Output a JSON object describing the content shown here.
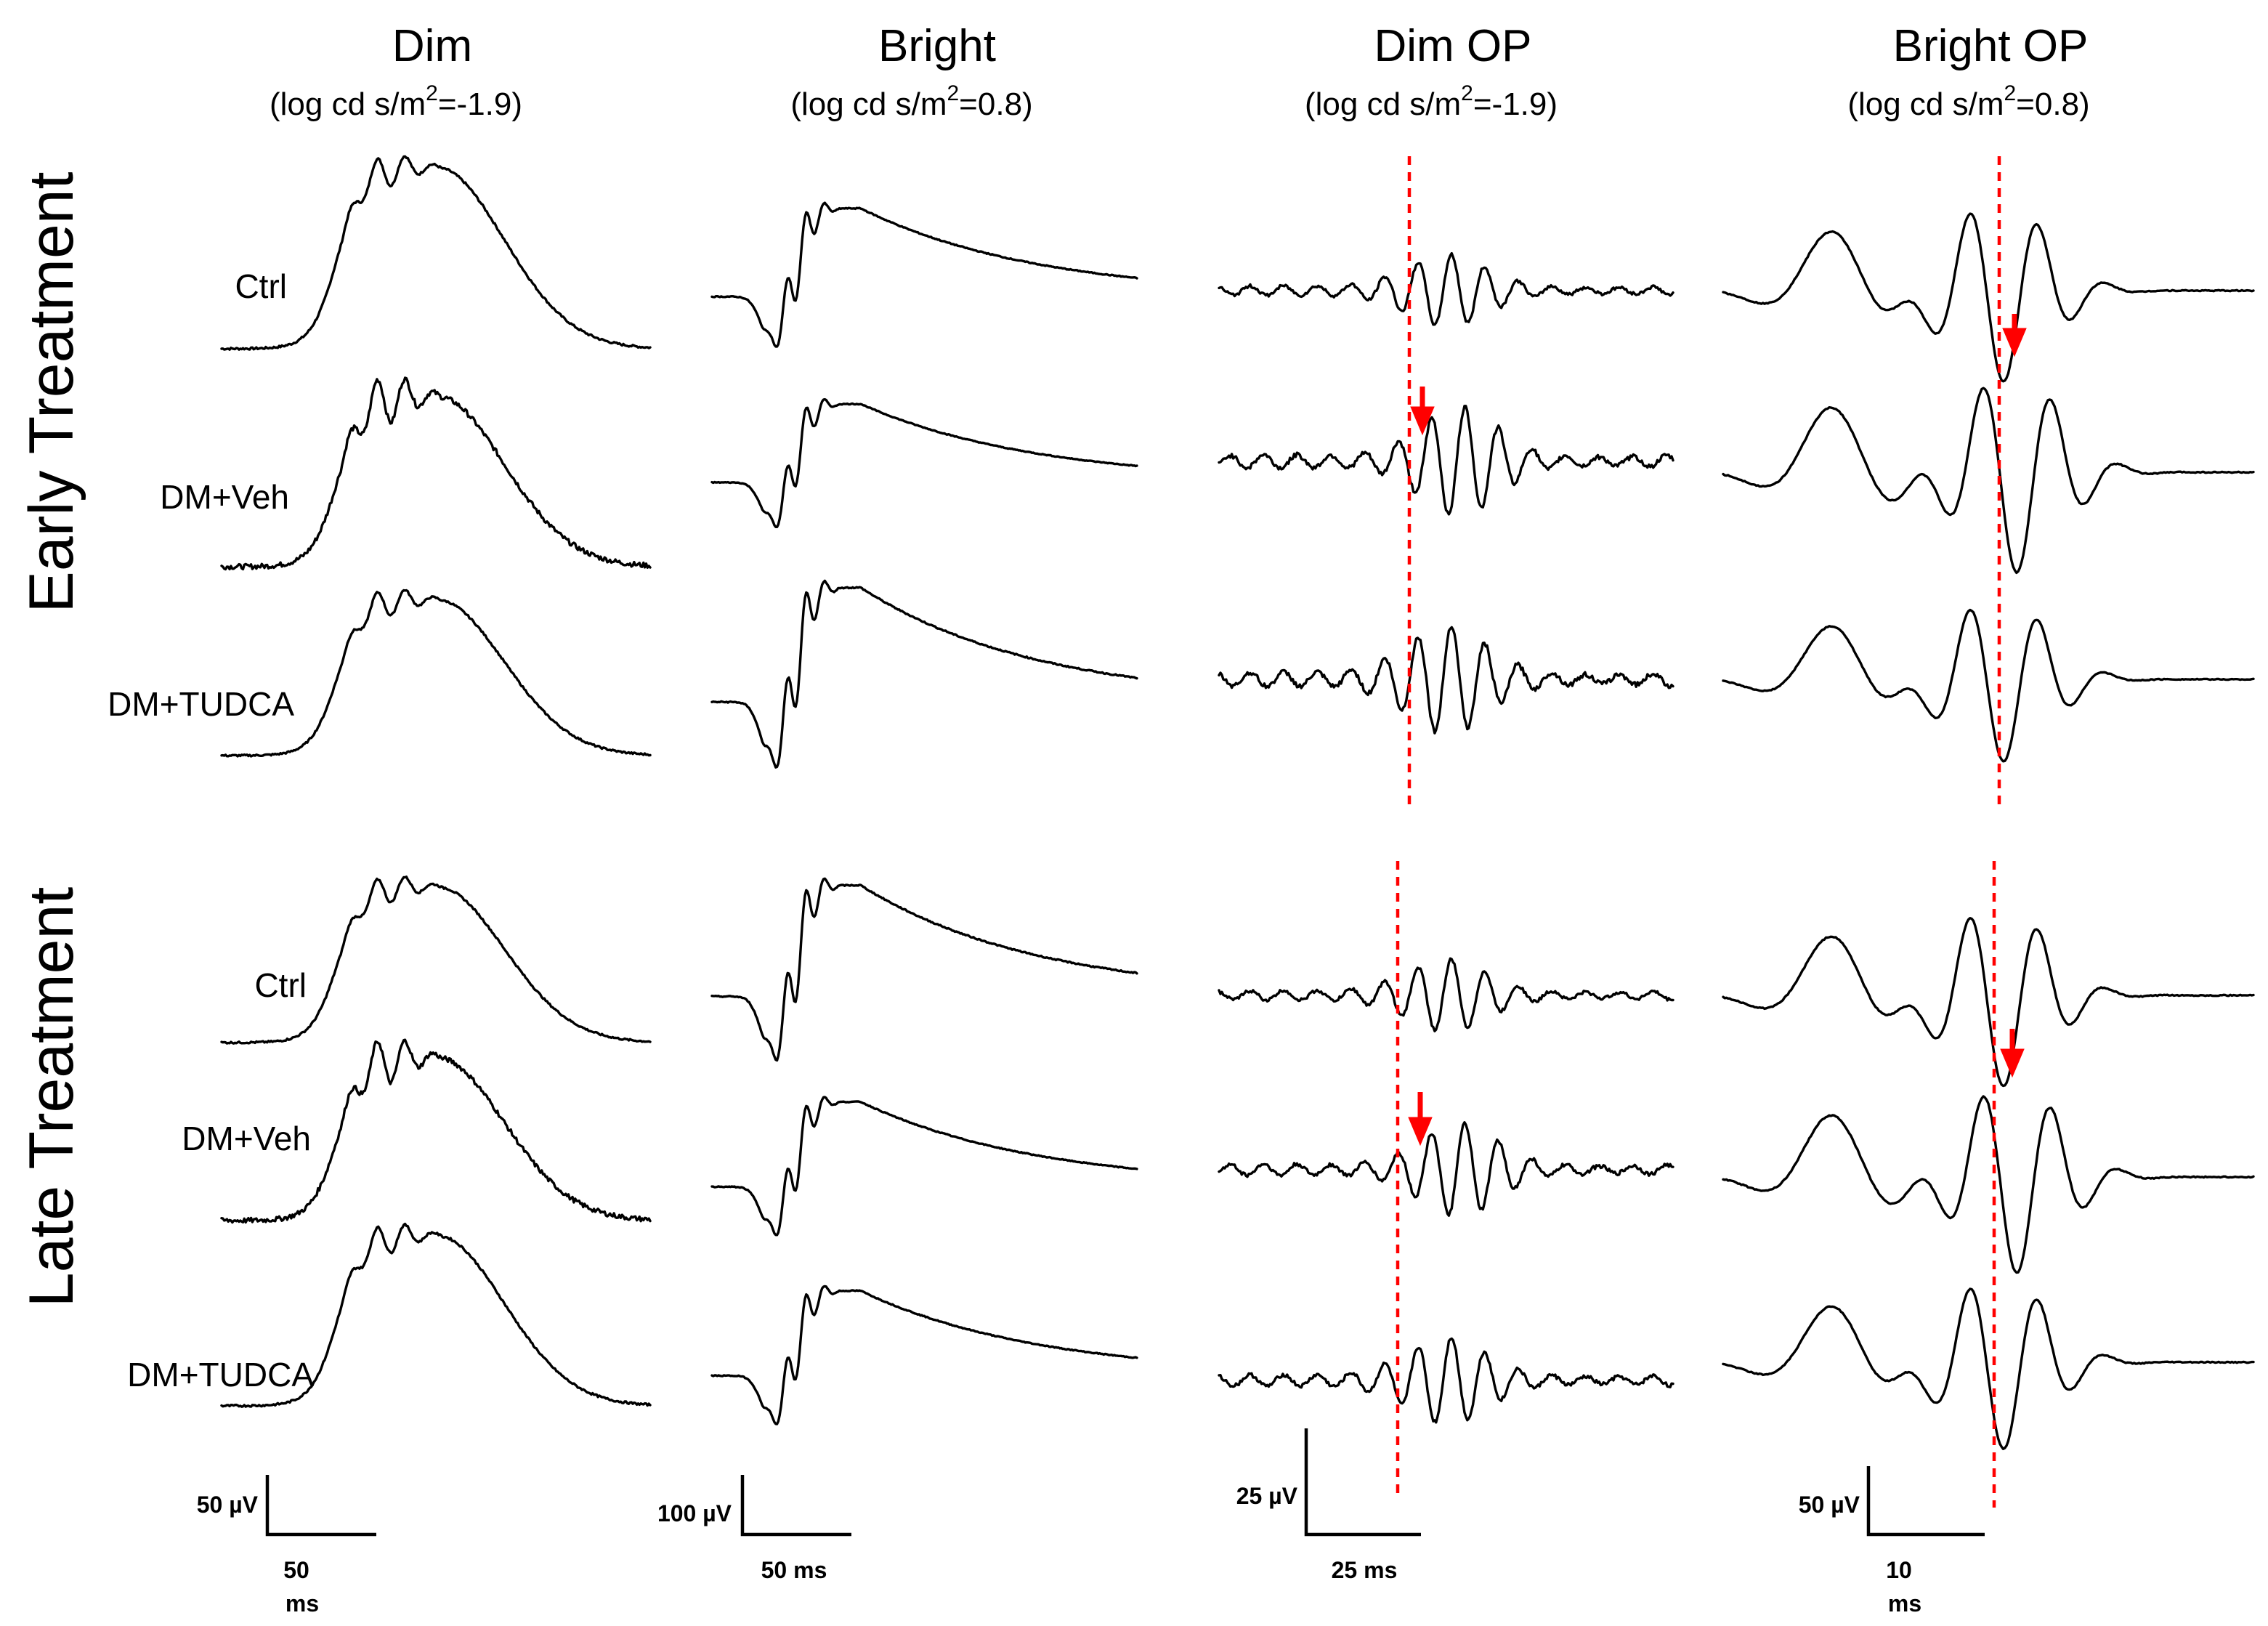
{
  "chart_data": {
    "type": "line",
    "columns": [
      {
        "title": "Dim",
        "subtitle": "(log cd s/m2=-1.9)",
        "subtitle_main": "(log cd s/m",
        "subtitle_sup": "2",
        "subtitle_tail": "=-1.9)",
        "kind": "erg",
        "variant": "dim",
        "scale": {
          "y_label": "50 µV",
          "x_label_1": "50",
          "x_label_2": "ms"
        }
      },
      {
        "title": "Bright",
        "subtitle": "(log cd s/m2=0.8)",
        "subtitle_main": "(log cd s/m",
        "subtitle_sup": "2",
        "subtitle_tail": "=0.8)",
        "kind": "erg",
        "variant": "bright",
        "scale": {
          "y_label": "100 µV",
          "x_label_1": "50 ms",
          "x_label_2": ""
        }
      },
      {
        "title": "Dim OP",
        "subtitle": "(log cd s/m2=-1.9)",
        "subtitle_main": "(log cd s/m",
        "subtitle_sup": "2",
        "subtitle_tail": "=-1.9)",
        "kind": "op",
        "variant": "dimop",
        "scale": {
          "y_label": "25 µV",
          "x_label_1": "25 ms",
          "x_label_2": ""
        }
      },
      {
        "title": "Bright OP",
        "subtitle": "(log cd s/m2=0.8)",
        "subtitle_main": "(log cd s/m",
        "subtitle_sup": "2",
        "subtitle_tail": "=0.8)",
        "kind": "op",
        "variant": "brightop",
        "scale": {
          "y_label": "50 µV",
          "x_label_1": "10",
          "x_label_2": "ms"
        }
      }
    ],
    "rows": [
      {
        "label": "Early Treatment",
        "groups": [
          "Ctrl",
          "DM+Veh",
          "DM+TUDCA"
        ]
      },
      {
        "label": "Late Treatment",
        "groups": [
          "Ctrl",
          "DM+Veh",
          "DM+TUDCA"
        ]
      }
    ],
    "annotations": "Red dashed lines mark the control OP peak; red arrows show the delayed peak in DM+Veh.",
    "colors": {
      "trace": "#000000",
      "marker": "#ff0000"
    }
  }
}
